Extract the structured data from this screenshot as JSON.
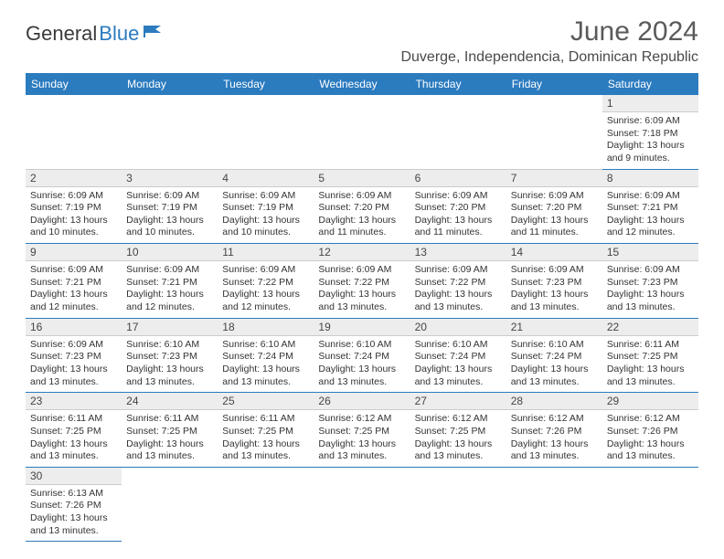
{
  "logo": {
    "word1": "General",
    "word2": "Blue",
    "flag_color": "#2b7bbf",
    "text_color": "#3a3a3a"
  },
  "title": "June 2024",
  "location": "Duverge, Independencia, Dominican Republic",
  "colors": {
    "header_bg": "#2b7bbf",
    "header_text": "#ffffff",
    "daynum_bg": "#ededed",
    "row_border": "#2b7bbf",
    "subtle_border": "#cccccc",
    "body_text": "#333333"
  },
  "weekdays": [
    "Sunday",
    "Monday",
    "Tuesday",
    "Wednesday",
    "Thursday",
    "Friday",
    "Saturday"
  ],
  "grid": [
    [
      null,
      null,
      null,
      null,
      null,
      null,
      {
        "n": "1",
        "sr": "Sunrise: 6:09 AM",
        "ss": "Sunset: 7:18 PM",
        "dl": "Daylight: 13 hours and 9 minutes."
      }
    ],
    [
      {
        "n": "2",
        "sr": "Sunrise: 6:09 AM",
        "ss": "Sunset: 7:19 PM",
        "dl": "Daylight: 13 hours and 10 minutes."
      },
      {
        "n": "3",
        "sr": "Sunrise: 6:09 AM",
        "ss": "Sunset: 7:19 PM",
        "dl": "Daylight: 13 hours and 10 minutes."
      },
      {
        "n": "4",
        "sr": "Sunrise: 6:09 AM",
        "ss": "Sunset: 7:19 PM",
        "dl": "Daylight: 13 hours and 10 minutes."
      },
      {
        "n": "5",
        "sr": "Sunrise: 6:09 AM",
        "ss": "Sunset: 7:20 PM",
        "dl": "Daylight: 13 hours and 11 minutes."
      },
      {
        "n": "6",
        "sr": "Sunrise: 6:09 AM",
        "ss": "Sunset: 7:20 PM",
        "dl": "Daylight: 13 hours and 11 minutes."
      },
      {
        "n": "7",
        "sr": "Sunrise: 6:09 AM",
        "ss": "Sunset: 7:20 PM",
        "dl": "Daylight: 13 hours and 11 minutes."
      },
      {
        "n": "8",
        "sr": "Sunrise: 6:09 AM",
        "ss": "Sunset: 7:21 PM",
        "dl": "Daylight: 13 hours and 12 minutes."
      }
    ],
    [
      {
        "n": "9",
        "sr": "Sunrise: 6:09 AM",
        "ss": "Sunset: 7:21 PM",
        "dl": "Daylight: 13 hours and 12 minutes."
      },
      {
        "n": "10",
        "sr": "Sunrise: 6:09 AM",
        "ss": "Sunset: 7:21 PM",
        "dl": "Daylight: 13 hours and 12 minutes."
      },
      {
        "n": "11",
        "sr": "Sunrise: 6:09 AM",
        "ss": "Sunset: 7:22 PM",
        "dl": "Daylight: 13 hours and 12 minutes."
      },
      {
        "n": "12",
        "sr": "Sunrise: 6:09 AM",
        "ss": "Sunset: 7:22 PM",
        "dl": "Daylight: 13 hours and 13 minutes."
      },
      {
        "n": "13",
        "sr": "Sunrise: 6:09 AM",
        "ss": "Sunset: 7:22 PM",
        "dl": "Daylight: 13 hours and 13 minutes."
      },
      {
        "n": "14",
        "sr": "Sunrise: 6:09 AM",
        "ss": "Sunset: 7:23 PM",
        "dl": "Daylight: 13 hours and 13 minutes."
      },
      {
        "n": "15",
        "sr": "Sunrise: 6:09 AM",
        "ss": "Sunset: 7:23 PM",
        "dl": "Daylight: 13 hours and 13 minutes."
      }
    ],
    [
      {
        "n": "16",
        "sr": "Sunrise: 6:09 AM",
        "ss": "Sunset: 7:23 PM",
        "dl": "Daylight: 13 hours and 13 minutes."
      },
      {
        "n": "17",
        "sr": "Sunrise: 6:10 AM",
        "ss": "Sunset: 7:23 PM",
        "dl": "Daylight: 13 hours and 13 minutes."
      },
      {
        "n": "18",
        "sr": "Sunrise: 6:10 AM",
        "ss": "Sunset: 7:24 PM",
        "dl": "Daylight: 13 hours and 13 minutes."
      },
      {
        "n": "19",
        "sr": "Sunrise: 6:10 AM",
        "ss": "Sunset: 7:24 PM",
        "dl": "Daylight: 13 hours and 13 minutes."
      },
      {
        "n": "20",
        "sr": "Sunrise: 6:10 AM",
        "ss": "Sunset: 7:24 PM",
        "dl": "Daylight: 13 hours and 13 minutes."
      },
      {
        "n": "21",
        "sr": "Sunrise: 6:10 AM",
        "ss": "Sunset: 7:24 PM",
        "dl": "Daylight: 13 hours and 13 minutes."
      },
      {
        "n": "22",
        "sr": "Sunrise: 6:11 AM",
        "ss": "Sunset: 7:25 PM",
        "dl": "Daylight: 13 hours and 13 minutes."
      }
    ],
    [
      {
        "n": "23",
        "sr": "Sunrise: 6:11 AM",
        "ss": "Sunset: 7:25 PM",
        "dl": "Daylight: 13 hours and 13 minutes."
      },
      {
        "n": "24",
        "sr": "Sunrise: 6:11 AM",
        "ss": "Sunset: 7:25 PM",
        "dl": "Daylight: 13 hours and 13 minutes."
      },
      {
        "n": "25",
        "sr": "Sunrise: 6:11 AM",
        "ss": "Sunset: 7:25 PM",
        "dl": "Daylight: 13 hours and 13 minutes."
      },
      {
        "n": "26",
        "sr": "Sunrise: 6:12 AM",
        "ss": "Sunset: 7:25 PM",
        "dl": "Daylight: 13 hours and 13 minutes."
      },
      {
        "n": "27",
        "sr": "Sunrise: 6:12 AM",
        "ss": "Sunset: 7:25 PM",
        "dl": "Daylight: 13 hours and 13 minutes."
      },
      {
        "n": "28",
        "sr": "Sunrise: 6:12 AM",
        "ss": "Sunset: 7:26 PM",
        "dl": "Daylight: 13 hours and 13 minutes."
      },
      {
        "n": "29",
        "sr": "Sunrise: 6:12 AM",
        "ss": "Sunset: 7:26 PM",
        "dl": "Daylight: 13 hours and 13 minutes."
      }
    ],
    [
      {
        "n": "30",
        "sr": "Sunrise: 6:13 AM",
        "ss": "Sunset: 7:26 PM",
        "dl": "Daylight: 13 hours and 13 minutes."
      },
      null,
      null,
      null,
      null,
      null,
      null
    ]
  ]
}
